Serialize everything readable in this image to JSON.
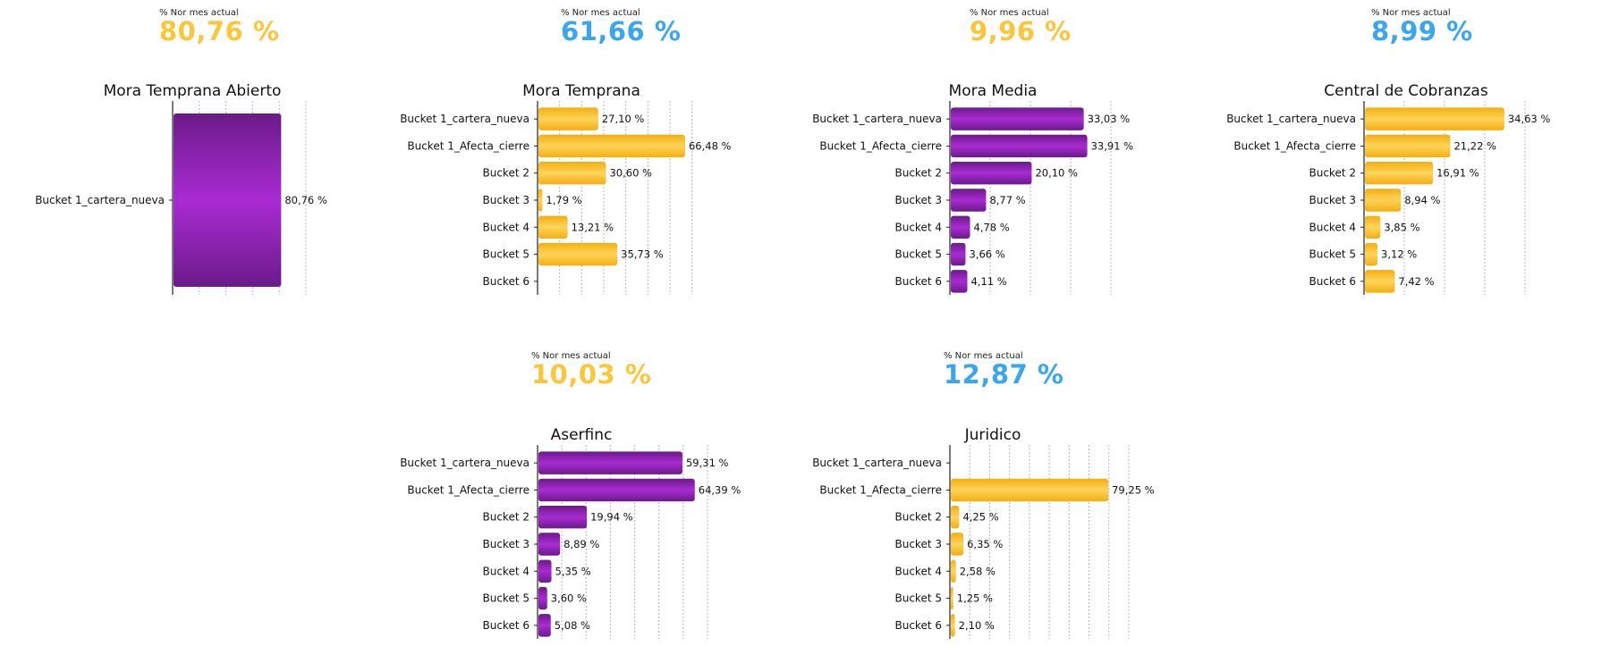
{
  "colors": {
    "yellow": "#FBC63A",
    "blue": "#3AA6F0",
    "purple": "#8C1FB0"
  },
  "kpis": [
    {
      "label": "% Nor mes actual",
      "value": "80,76 %",
      "color": "yellow"
    },
    {
      "label": "% Nor mes actual",
      "value": "61,66 %",
      "color": "blue"
    },
    {
      "label": "% Nor mes actual",
      "value": "9,96 %",
      "color": "yellow"
    },
    {
      "label": "% Nor mes actual",
      "value": "8,99 %",
      "color": "blue"
    },
    {
      "label": "% Nor mes actual",
      "value": "10,03 %",
      "color": "yellow"
    },
    {
      "label": "% Nor mes actual",
      "value": "12,87 %",
      "color": "blue"
    }
  ],
  "chart_data": [
    {
      "type": "bar",
      "orientation": "horizontal",
      "title": "Mora Temprana Abierto",
      "bar_color": "purple",
      "xlim": [
        0,
        100
      ],
      "grid": true,
      "categories": [
        "Bucket 1_cartera_nueva"
      ],
      "values": [
        80.76
      ],
      "labels": [
        "80,76 %"
      ]
    },
    {
      "type": "bar",
      "orientation": "horizontal",
      "title": "Mora Temprana",
      "bar_color": "yellow",
      "xlim": [
        0,
        75
      ],
      "grid": true,
      "categories": [
        "Bucket 1_cartera_nueva",
        "Bucket 1_Afecta_cierre",
        "Bucket 2",
        "Bucket 3",
        "Bucket 4",
        "Bucket 5",
        "Bucket 6"
      ],
      "values": [
        27.1,
        66.48,
        30.6,
        1.79,
        13.21,
        35.73,
        null
      ],
      "labels": [
        "27,10 %",
        "66,48 %",
        "30,60 %",
        "1,79 %",
        "13,21 %",
        "35,73 %",
        ""
      ]
    },
    {
      "type": "bar",
      "orientation": "horizontal",
      "title": "Mora Media",
      "bar_color": "purple",
      "xlim": [
        0,
        40
      ],
      "grid": true,
      "categories": [
        "Bucket 1_cartera_nueva",
        "Bucket 1_Afecta_cierre",
        "Bucket 2",
        "Bucket 3",
        "Bucket 4",
        "Bucket 5",
        "Bucket 6"
      ],
      "values": [
        33.03,
        33.91,
        20.1,
        8.77,
        4.78,
        3.66,
        4.11
      ],
      "labels": [
        "33,03 %",
        "33,91 %",
        "20,10 %",
        "8,77 %",
        "4,78 %",
        "3,66 %",
        "4,11 %"
      ]
    },
    {
      "type": "bar",
      "orientation": "horizontal",
      "title": "Central de Cobranzas",
      "bar_color": "yellow",
      "xlim": [
        0,
        40
      ],
      "grid": true,
      "categories": [
        "Bucket 1_cartera_nueva",
        "Bucket 1_Afecta_cierre",
        "Bucket 2",
        "Bucket 3",
        "Bucket 4",
        "Bucket 5",
        "Bucket 6"
      ],
      "values": [
        34.63,
        21.22,
        16.91,
        8.94,
        3.85,
        3.12,
        7.42
      ],
      "labels": [
        "34,63 %",
        "21,22 %",
        "16,91 %",
        "8,94 %",
        "3,85 %",
        "3,12 %",
        "7,42 %"
      ]
    },
    {
      "type": "bar",
      "orientation": "horizontal",
      "title": "Aserfinc",
      "bar_color": "purple",
      "xlim": [
        0,
        70
      ],
      "grid": true,
      "categories": [
        "Bucket 1_cartera_nueva",
        "Bucket 1_Afecta_cierre",
        "Bucket 2",
        "Bucket 3",
        "Bucket 4",
        "Bucket 5",
        "Bucket 6"
      ],
      "values": [
        59.31,
        64.39,
        19.94,
        8.89,
        5.35,
        3.6,
        5.08
      ],
      "labels": [
        "59,31 %",
        "64,39 %",
        "19,94 %",
        "8,89 %",
        "5,35 %",
        "3,60 %",
        "5,08 %"
      ]
    },
    {
      "type": "bar",
      "orientation": "horizontal",
      "title": "Juridico",
      "bar_color": "yellow",
      "xlim": [
        0,
        90
      ],
      "grid": true,
      "categories": [
        "Bucket 1_cartera_nueva",
        "Bucket 1_Afecta_cierre",
        "Bucket 2",
        "Bucket 3",
        "Bucket 4",
        "Bucket 5",
        "Bucket 6"
      ],
      "values": [
        null,
        79.25,
        4.25,
        6.35,
        2.58,
        1.25,
        2.1
      ],
      "labels": [
        "",
        "79,25 %",
        "4,25 %",
        "6,35 %",
        "2,58 %",
        "1,25 %",
        "2,10 %"
      ]
    }
  ]
}
